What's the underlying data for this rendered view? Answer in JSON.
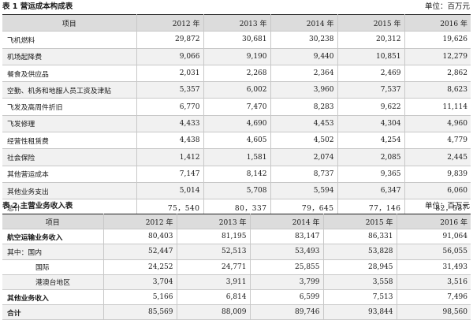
{
  "table1": {
    "caption": "表 1  营运成本构成表",
    "unit": "单位：百万元",
    "headers": [
      "项目",
      "2012 年",
      "2013 年",
      "2014 年",
      "2015 年",
      "2016 年"
    ],
    "rows": [
      {
        "label": "飞机燃料",
        "values": [
          "29,872",
          "30,681",
          "30,238",
          "20,312",
          "19,626"
        ]
      },
      {
        "label": "机场起降费",
        "values": [
          "9,066",
          "9,190",
          "9,440",
          "10,851",
          "12,279"
        ]
      },
      {
        "label": "餐食及供应品",
        "values": [
          "2,031",
          "2,268",
          "2,364",
          "2,469",
          "2,862"
        ]
      },
      {
        "label": "空勤、机务和地服人员工资及津贴",
        "values": [
          "5,357",
          "6,002",
          "3,960",
          "7,537",
          "8,623"
        ]
      },
      {
        "label": "飞发及高周件折旧",
        "values": [
          "6,770",
          "7,470",
          "8,283",
          "9,622",
          "11,114"
        ]
      },
      {
        "label": "飞发修理",
        "values": [
          "4,433",
          "4,690",
          "4,453",
          "4,304",
          "4,960"
        ]
      },
      {
        "label": "经营性租赁费",
        "values": [
          "4,438",
          "4,605",
          "4,502",
          "4,254",
          "4,779"
        ]
      },
      {
        "label": "社会保险",
        "values": [
          "1,412",
          "1,581",
          "2,074",
          "2,085",
          "2,445"
        ]
      },
      {
        "label": "其他营运成本",
        "values": [
          "7,147",
          "8,142",
          "8,737",
          "9,365",
          "9,839"
        ]
      },
      {
        "label": "其他业务支出",
        "values": [
          "5,014",
          "5,708",
          "5,594",
          "6,347",
          "6,060"
        ]
      },
      {
        "label": "总计",
        "values": [
          "75，540",
          "80，337",
          "79，645",
          "77，146",
          "82，587"
        ]
      }
    ]
  },
  "table2": {
    "caption": "表 2  主营业务收入表",
    "unit": "单位：百万元",
    "headers": [
      "项目",
      "2012 年",
      "2013 年",
      "2014 年",
      "2015 年",
      "2016 年"
    ],
    "rows": [
      {
        "label": "航空运输业务收入",
        "values": [
          "80,403",
          "81,195",
          "83,147",
          "86,331",
          "91,064"
        ]
      },
      {
        "label": "其中：国内",
        "values": [
          "52,447",
          "52,513",
          "53,493",
          "53,828",
          "56,055"
        ]
      },
      {
        "label": "国际",
        "values": [
          "24,252",
          "24,771",
          "25,855",
          "28,945",
          "31,493"
        ]
      },
      {
        "label": "港澳台地区",
        "values": [
          "3,704",
          "3,911",
          "3,799",
          "3,558",
          "3,516"
        ]
      },
      {
        "label": "其他业务收入",
        "values": [
          "5,166",
          "6,814",
          "6,599",
          "7,513",
          "7,496"
        ]
      },
      {
        "label": "合计",
        "values": [
          "85,569",
          "88,009",
          "89,746",
          "93,844",
          "98,560"
        ]
      }
    ]
  }
}
